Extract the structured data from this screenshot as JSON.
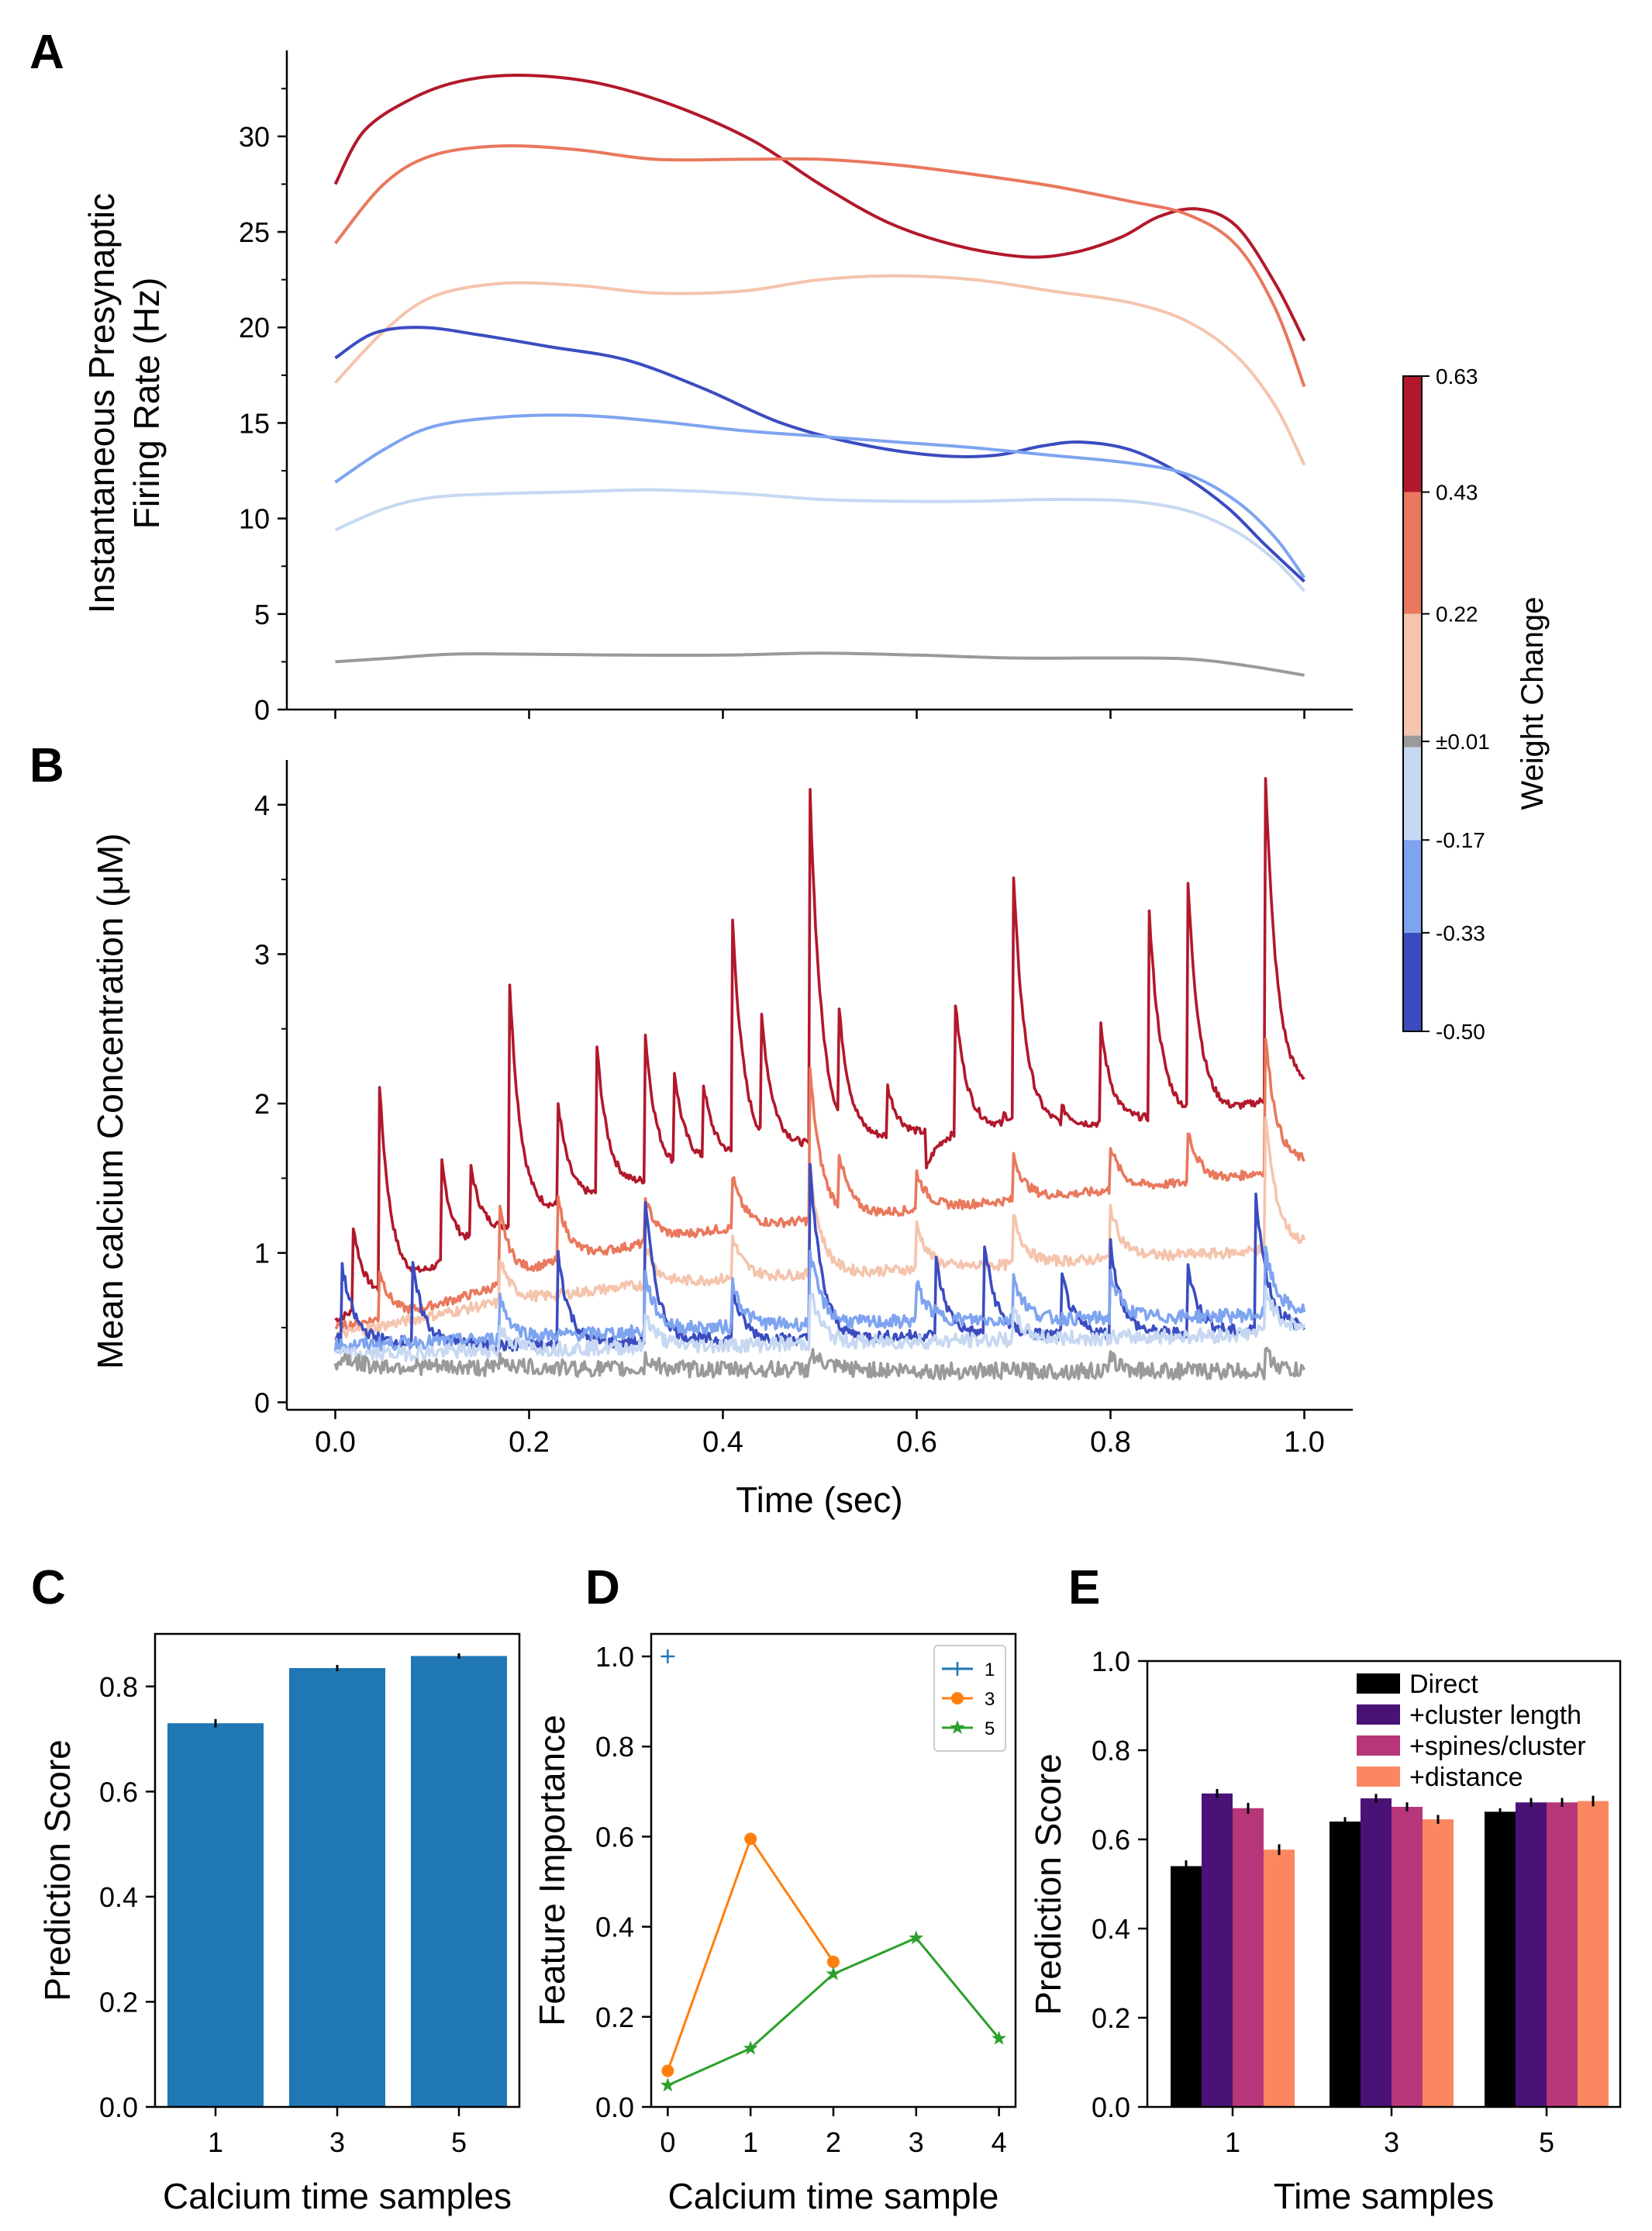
{
  "figure": {
    "panels": {
      "A": "A",
      "B": "B",
      "C": "C",
      "D": "D",
      "E": "E"
    }
  },
  "colorbar": {
    "label": "Weight Change",
    "ticks": [
      "0.63",
      "0.43",
      "0.22",
      "±0.01",
      "-0.17",
      "-0.33",
      "-0.50"
    ],
    "bands": [
      "#b2182b",
      "#e9785d",
      "#f5c4ad",
      "#9a9a9a",
      "#c7d8f2",
      "#7ea4f0",
      "#3b4cc0"
    ]
  },
  "chart_data": [
    {
      "id": "A",
      "type": "line",
      "ylabel_line1": "Instantaneous Presynaptic",
      "ylabel_line2": "Firing Rate (Hz)",
      "yticks": [
        "0",
        "5",
        "10",
        "15",
        "20",
        "25",
        "30"
      ],
      "ylim": [
        0,
        34.5
      ],
      "xlim": [
        -0.05,
        1.05
      ],
      "series": [
        {
          "name": "0.63",
          "color": "#b2182b",
          "x": [
            0,
            0.03,
            0.08,
            0.13,
            0.19,
            0.27,
            0.35,
            0.43,
            0.5,
            0.57,
            0.64,
            0.71,
            0.76,
            0.81,
            0.85,
            0.89,
            0.93,
            0.97,
            1.0
          ],
          "y": [
            27.5,
            30.3,
            32.0,
            32.9,
            33.2,
            32.8,
            31.6,
            29.8,
            27.5,
            25.5,
            24.3,
            23.7,
            23.9,
            24.7,
            25.8,
            26.2,
            25.3,
            22.3,
            19.3
          ]
        },
        {
          "name": "0.43",
          "color": "#e9785d",
          "x": [
            0,
            0.05,
            0.1,
            0.17,
            0.25,
            0.33,
            0.42,
            0.5,
            0.58,
            0.66,
            0.74,
            0.82,
            0.88,
            0.93,
            0.97,
            1.0
          ],
          "y": [
            24.4,
            27.5,
            29.0,
            29.5,
            29.3,
            28.8,
            28.8,
            28.8,
            28.5,
            28.0,
            27.4,
            26.6,
            25.9,
            24.3,
            21.0,
            16.9
          ]
        },
        {
          "name": "0.22",
          "color": "#f5c4ad",
          "x": [
            0,
            0.05,
            0.1,
            0.17,
            0.25,
            0.33,
            0.42,
            0.5,
            0.58,
            0.66,
            0.74,
            0.82,
            0.88,
            0.93,
            0.97,
            1.0
          ],
          "y": [
            17.1,
            19.8,
            21.6,
            22.3,
            22.2,
            21.8,
            21.9,
            22.5,
            22.7,
            22.5,
            21.9,
            21.3,
            20.3,
            18.5,
            15.9,
            12.8
          ]
        },
        {
          "name": "-0.50",
          "color": "#3b4cc0",
          "x": [
            0,
            0.04,
            0.09,
            0.15,
            0.22,
            0.3,
            0.38,
            0.46,
            0.54,
            0.62,
            0.68,
            0.73,
            0.77,
            0.82,
            0.87,
            0.92,
            0.96,
            1.0
          ],
          "y": [
            18.4,
            19.7,
            20.0,
            19.6,
            19.0,
            18.3,
            16.8,
            15.0,
            13.9,
            13.3,
            13.3,
            13.8,
            14.0,
            13.6,
            12.4,
            10.6,
            8.6,
            6.7
          ]
        },
        {
          "name": "-0.33",
          "color": "#7ea4f0",
          "x": [
            0,
            0.05,
            0.1,
            0.17,
            0.25,
            0.33,
            0.42,
            0.5,
            0.58,
            0.66,
            0.74,
            0.82,
            0.88,
            0.93,
            0.97,
            1.0
          ],
          "y": [
            11.9,
            13.6,
            14.8,
            15.3,
            15.4,
            15.1,
            14.6,
            14.3,
            14.0,
            13.7,
            13.3,
            12.9,
            12.3,
            10.9,
            9.0,
            6.9
          ]
        },
        {
          "name": "-0.17",
          "color": "#c7d8f2",
          "x": [
            0,
            0.05,
            0.1,
            0.17,
            0.25,
            0.33,
            0.42,
            0.5,
            0.58,
            0.66,
            0.74,
            0.82,
            0.88,
            0.93,
            0.97,
            1.0
          ],
          "y": [
            9.4,
            10.5,
            11.1,
            11.3,
            11.4,
            11.5,
            11.3,
            11.0,
            10.9,
            10.9,
            11.0,
            10.9,
            10.4,
            9.3,
            7.8,
            6.2
          ]
        },
        {
          "name": "±0.01",
          "color": "#9a9a9a",
          "x": [
            0,
            0.06,
            0.12,
            0.2,
            0.3,
            0.4,
            0.5,
            0.6,
            0.7,
            0.8,
            0.88,
            0.94,
            1.0
          ],
          "y": [
            2.5,
            2.7,
            2.9,
            2.9,
            2.85,
            2.85,
            2.95,
            2.85,
            2.7,
            2.7,
            2.65,
            2.3,
            1.8
          ]
        }
      ]
    },
    {
      "id": "B",
      "type": "line",
      "ylabel": "Mean calcium Concentration (μM)",
      "xlabel": "Time (sec)",
      "xticks": [
        "0.0",
        "0.2",
        "0.4",
        "0.6",
        "0.8",
        "1.0"
      ],
      "yticks": [
        "0",
        "1",
        "2",
        "3",
        "4"
      ],
      "ylim": [
        -0.05,
        4.3
      ],
      "xlim": [
        -0.05,
        1.05
      ],
      "series": [
        {
          "name": "0.63",
          "color": "#b2182b",
          "base": [
            0.55,
            0.8,
            1.1,
            1.3,
            1.45,
            1.6,
            1.7,
            1.75,
            1.8,
            1.85,
            1.85,
            1.9,
            1.95,
            2.1
          ],
          "spikes": [
            [
              0.018,
              1.15
            ],
            [
              0.045,
              2.25
            ],
            [
              0.11,
              1.47
            ],
            [
              0.14,
              1.58
            ],
            [
              0.18,
              2.72
            ],
            [
              0.23,
              1.98
            ],
            [
              0.27,
              2.43
            ],
            [
              0.32,
              2.42
            ],
            [
              0.35,
              2.2
            ],
            [
              0.38,
              2.08
            ],
            [
              0.41,
              3.15
            ],
            [
              0.44,
              2.48
            ],
            [
              0.49,
              4.05
            ],
            [
              0.52,
              2.45
            ],
            [
              0.57,
              2.08
            ],
            [
              0.61,
              1.55
            ],
            [
              0.64,
              2.67
            ],
            [
              0.69,
              1.92
            ],
            [
              0.7,
              3.47
            ],
            [
              0.75,
              1.95
            ],
            [
              0.79,
              2.5
            ],
            [
              0.84,
              3.27
            ],
            [
              0.88,
              3.4
            ],
            [
              0.96,
              4.12
            ]
          ]
        },
        {
          "name": "0.43",
          "color": "#e9785d",
          "base": [
            0.5,
            0.6,
            0.75,
            0.95,
            1.05,
            1.15,
            1.2,
            1.25,
            1.3,
            1.35,
            1.4,
            1.45,
            1.5,
            1.6
          ],
          "spikes": [
            [
              0.045,
              0.95
            ],
            [
              0.17,
              1.25
            ],
            [
              0.23,
              1.35
            ],
            [
              0.32,
              1.35
            ],
            [
              0.41,
              1.5
            ],
            [
              0.49,
              2.2
            ],
            [
              0.52,
              1.6
            ],
            [
              0.6,
              1.55
            ],
            [
              0.7,
              1.65
            ],
            [
              0.8,
              1.7
            ],
            [
              0.88,
              1.8
            ],
            [
              0.96,
              2.4
            ]
          ]
        },
        {
          "name": "0.22",
          "color": "#f5c4ad",
          "base": [
            0.45,
            0.55,
            0.65,
            0.72,
            0.78,
            0.82,
            0.85,
            0.87,
            0.9,
            0.92,
            0.95,
            0.98,
            1.0,
            1.05
          ],
          "spikes": [
            [
              0.17,
              0.95
            ],
            [
              0.32,
              1.05
            ],
            [
              0.41,
              1.1
            ],
            [
              0.49,
              1.55
            ],
            [
              0.6,
              1.2
            ],
            [
              0.7,
              1.25
            ],
            [
              0.8,
              1.3
            ],
            [
              0.96,
              1.9
            ]
          ]
        },
        {
          "name": "-0.50",
          "color": "#3b4cc0",
          "base": [
            0.42,
            0.4,
            0.38,
            0.38,
            0.4,
            0.42,
            0.42,
            0.43,
            0.45,
            0.45,
            0.45,
            0.46,
            0.47,
            0.5
          ],
          "spikes": [
            [
              0.007,
              0.92
            ],
            [
              0.08,
              0.9
            ],
            [
              0.23,
              1.0
            ],
            [
              0.32,
              1.35
            ],
            [
              0.41,
              0.75
            ],
            [
              0.49,
              1.6
            ],
            [
              0.62,
              0.95
            ],
            [
              0.67,
              1.05
            ],
            [
              0.75,
              0.85
            ],
            [
              0.8,
              1.05
            ],
            [
              0.88,
              0.9
            ],
            [
              0.95,
              1.4
            ]
          ]
        },
        {
          "name": "-0.33",
          "color": "#7ea4f0",
          "base": [
            0.38,
            0.4,
            0.42,
            0.45,
            0.47,
            0.5,
            0.52,
            0.53,
            0.55,
            0.55,
            0.56,
            0.57,
            0.58,
            0.6
          ],
          "spikes": [
            [
              0.17,
              0.7
            ],
            [
              0.32,
              0.85
            ],
            [
              0.41,
              0.8
            ],
            [
              0.49,
              1.0
            ],
            [
              0.6,
              0.8
            ],
            [
              0.7,
              0.85
            ],
            [
              0.8,
              0.85
            ],
            [
              0.96,
              1.0
            ]
          ]
        },
        {
          "name": "-0.17",
          "color": "#c7d8f2",
          "base": [
            0.32,
            0.33,
            0.35,
            0.36,
            0.37,
            0.38,
            0.39,
            0.4,
            0.41,
            0.42,
            0.43,
            0.44,
            0.45,
            0.5
          ],
          "spikes": [
            [
              0.17,
              0.5
            ],
            [
              0.32,
              0.6
            ],
            [
              0.49,
              0.75
            ],
            [
              0.7,
              0.6
            ],
            [
              0.96,
              0.75
            ]
          ]
        },
        {
          "name": "±0.01",
          "color": "#9a9a9a",
          "base": [
            0.24,
            0.24,
            0.23,
            0.23,
            0.22,
            0.22,
            0.22,
            0.22,
            0.21,
            0.21,
            0.21,
            0.21,
            0.21,
            0.2
          ],
          "spikes": [
            [
              0.007,
              0.33
            ],
            [
              0.17,
              0.3
            ],
            [
              0.32,
              0.3
            ],
            [
              0.49,
              0.34
            ],
            [
              0.8,
              0.3
            ],
            [
              0.96,
              0.34
            ]
          ]
        }
      ]
    },
    {
      "id": "C",
      "type": "bar",
      "xlabel": "Calcium time samples",
      "ylabel": "Prediction Score",
      "categories": [
        "1",
        "3",
        "5"
      ],
      "values": [
        0.73,
        0.835,
        0.858
      ],
      "errors": [
        0.008,
        0.006,
        0.005
      ],
      "color": "#1f77b4",
      "yticks": [
        "0.0",
        "0.2",
        "0.4",
        "0.6",
        "0.8"
      ],
      "ylim": [
        0,
        0.9
      ]
    },
    {
      "id": "D",
      "type": "line",
      "xlabel": "Calcium time sample",
      "ylabel": "Feature Importance",
      "xticks": [
        "0",
        "1",
        "2",
        "3",
        "4"
      ],
      "yticks": [
        "0.0",
        "0.2",
        "0.4",
        "0.6",
        "0.8",
        "1.0"
      ],
      "xlim": [
        -0.2,
        4.2
      ],
      "ylim": [
        0,
        1.05
      ],
      "series": [
        {
          "name": "1",
          "color": "#1f77b4",
          "marker": "plus",
          "x": [
            0
          ],
          "y": [
            1.0
          ]
        },
        {
          "name": "3",
          "color": "#ff7f0e",
          "marker": "circle",
          "x": [
            0,
            1,
            2
          ],
          "y": [
            0.08,
            0.595,
            0.322
          ]
        },
        {
          "name": "5",
          "color": "#2ca02c",
          "marker": "star",
          "x": [
            0,
            1,
            2,
            3,
            4
          ],
          "y": [
            0.048,
            0.13,
            0.295,
            0.375,
            0.152
          ]
        }
      ]
    },
    {
      "id": "E",
      "type": "bar",
      "xlabel": "Time samples",
      "ylabel": "Prediction Score",
      "categories": [
        "1",
        "3",
        "5"
      ],
      "yticks": [
        "0.0",
        "0.2",
        "0.4",
        "0.6",
        "0.8",
        "1.0"
      ],
      "ylim": [
        0,
        1.0
      ],
      "series": [
        {
          "name": "Direct",
          "color": "#000000",
          "values": [
            0.54,
            0.64,
            0.662
          ],
          "errors": [
            0.013,
            0.01,
            0.008
          ]
        },
        {
          "name": "+cluster length",
          "color": "#4a1276",
          "values": [
            0.703,
            0.692,
            0.683
          ],
          "errors": [
            0.01,
            0.01,
            0.01
          ]
        },
        {
          "name": "+spines/cluster",
          "color": "#b63679",
          "values": [
            0.67,
            0.673,
            0.683
          ],
          "errors": [
            0.012,
            0.01,
            0.01
          ]
        },
        {
          "name": "+distance",
          "color": "#fb8761",
          "values": [
            0.577,
            0.645,
            0.686
          ],
          "errors": [
            0.012,
            0.01,
            0.012
          ]
        }
      ]
    }
  ]
}
